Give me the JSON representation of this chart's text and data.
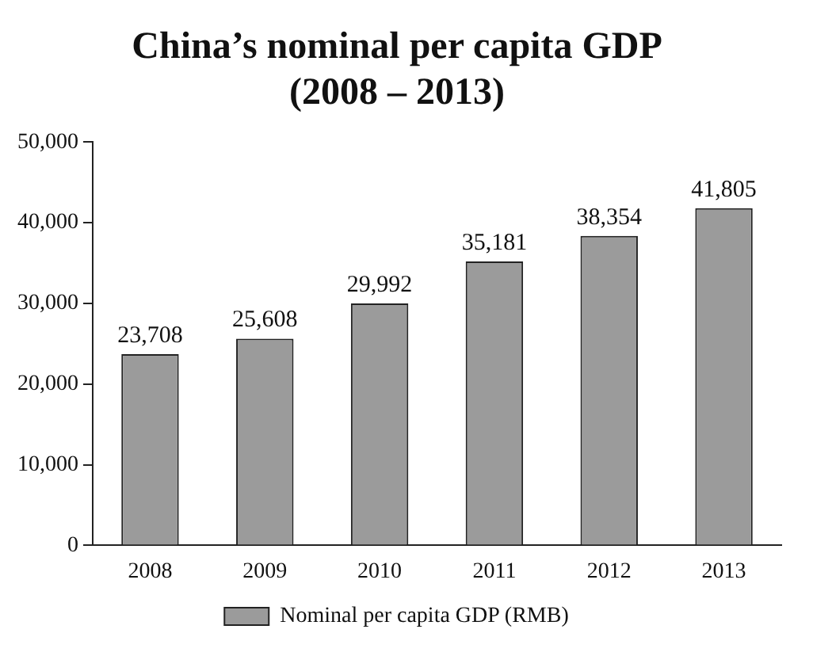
{
  "chart_data": {
    "type": "bar",
    "title": "China’s nominal per capita GDP\n(2008 – 2013)",
    "categories": [
      "2008",
      "2009",
      "2010",
      "2011",
      "2012",
      "2013"
    ],
    "series": [
      {
        "name": "Nominal per capita GDP (RMB)",
        "color": "#9b9b9b",
        "values": [
          23708,
          25608,
          29992,
          35181,
          38354,
          41805
        ],
        "value_labels": [
          "23,708",
          "25,608",
          "29,992",
          "35,181",
          "38,354",
          "41,805"
        ]
      }
    ],
    "ylim": [
      0,
      50000
    ],
    "yticks": [
      0,
      {
        "value": 10000,
        "label": "10,000"
      },
      {
        "value": 20000,
        "label": "20,000"
      },
      {
        "value": 30000,
        "label": "30,000"
      },
      {
        "value": 40000,
        "label": "40,000"
      },
      {
        "value": 50000,
        "label": "50,000"
      }
    ],
    "grid": false,
    "legend": "bottom"
  }
}
